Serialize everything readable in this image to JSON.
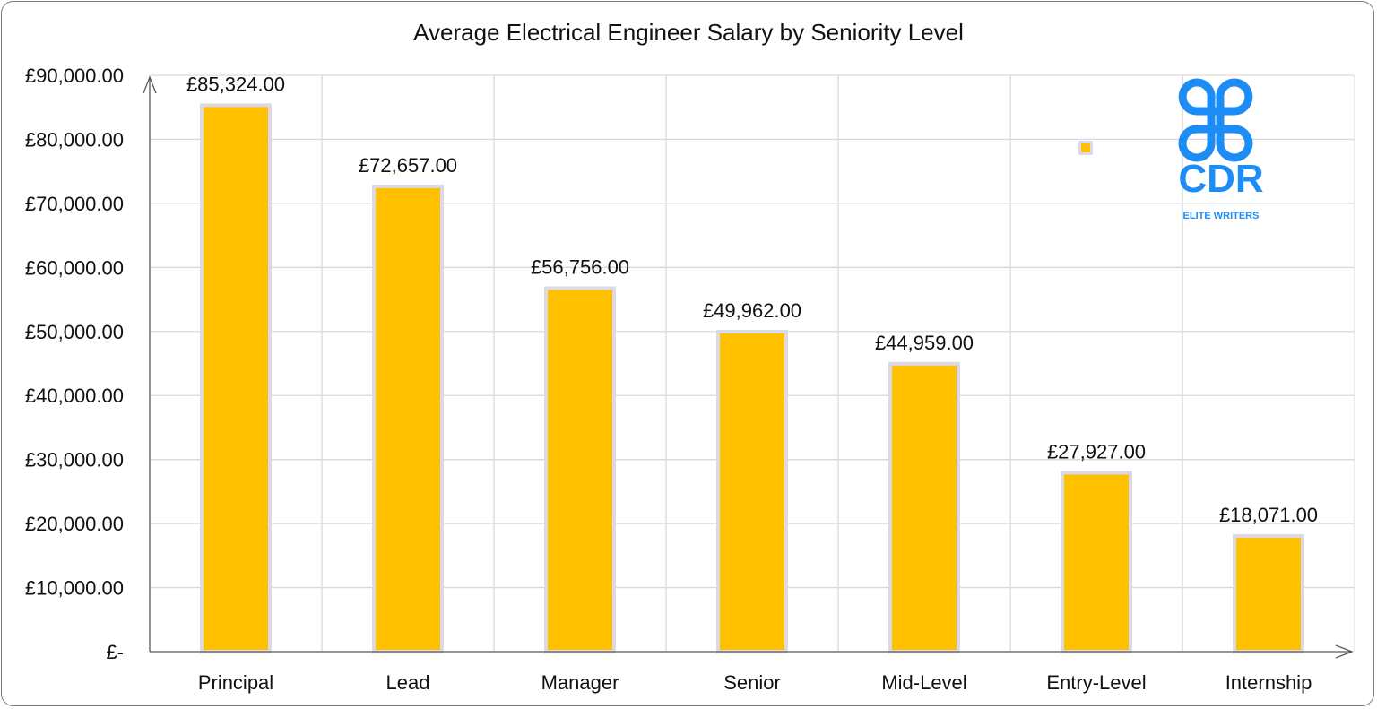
{
  "chart_data": {
    "type": "bar",
    "title": "Average Electrical Engineer Salary by Seniority Level",
    "xlabel": "",
    "ylabel": "",
    "categories": [
      "Principal",
      "Lead",
      "Manager",
      "Senior",
      "Mid-Level",
      "Entry-Level",
      "Internship"
    ],
    "values": [
      85324,
      72657,
      56756,
      49962,
      44959,
      27927,
      18071
    ],
    "data_labels": [
      "£85,324.00",
      "£72,657.00",
      "£56,756.00",
      "£49,962.00",
      "£44,959.00",
      "£27,927.00",
      "£18,071.00"
    ],
    "ylim": [
      0,
      90000
    ],
    "yticks": [
      0,
      10000,
      20000,
      30000,
      40000,
      50000,
      60000,
      70000,
      80000,
      90000
    ],
    "ytick_labels": [
      "£-",
      "£10,000.00",
      "£20,000.00",
      "£30,000.00",
      "£40,000.00",
      "£50,000.00",
      "£60,000.00",
      "£70,000.00",
      "£80,000.00",
      "£90,000.00"
    ],
    "grid": true,
    "legend": "top-right",
    "colors": {
      "bar": "#FFC000",
      "bar_border": "#D9D9E8",
      "grid": "#D9D9D9",
      "axis": "#595959",
      "logo": "#1E8CF5"
    }
  },
  "logo": {
    "main": "CDR",
    "sub": "ELITE WRITERS"
  }
}
